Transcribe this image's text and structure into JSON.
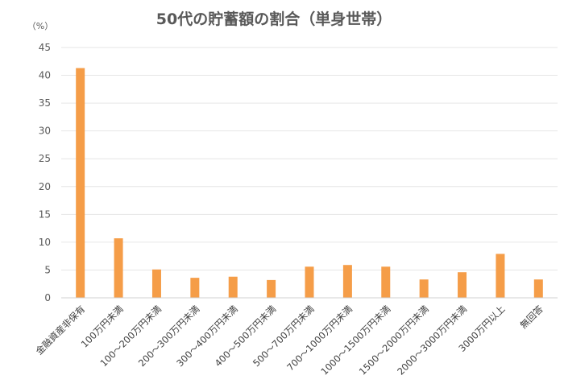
{
  "chart_data": {
    "type": "bar",
    "title": "50代の貯蓄額の割合（単身世帯）",
    "ylabel": "（%）",
    "xlabel": "",
    "ylim": [
      0,
      45
    ],
    "yticks": [
      0,
      5,
      10,
      15,
      20,
      25,
      30,
      35,
      40,
      45
    ],
    "grid": true,
    "bar_color": "#F59D48",
    "categories": [
      "金融資産非保有",
      "100万円未満",
      "100～200万円未満",
      "200～300万円未満",
      "300～400万円未満",
      "400～500万円未満",
      "500～700万円未満",
      "700～1000万円未満",
      "1000～1500万円未満",
      "1500～2000万円未満",
      "2000～3000万円未満",
      "3000万円以上",
      "無回答"
    ],
    "values": [
      41.3,
      10.7,
      5.1,
      3.6,
      3.8,
      3.2,
      5.6,
      5.9,
      5.6,
      3.3,
      4.6,
      7.9,
      3.3
    ]
  }
}
